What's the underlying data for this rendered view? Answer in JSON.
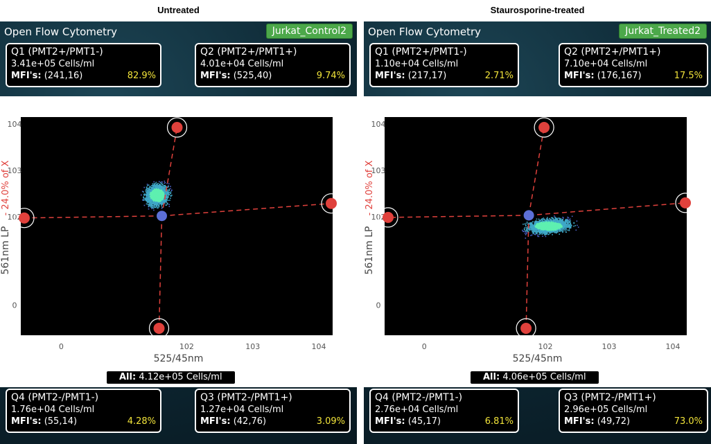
{
  "panels": [
    {
      "caption": "Untreated",
      "app_title": "Open Flow Cytometry",
      "sample_name": "Jurkat_Control2",
      "quadrants": {
        "q1": {
          "title": "Q1 (PMT2+/PMT1-)",
          "count": "3.41e+05 Cells/ml",
          "mfi_label": "MFI's:",
          "mfi": "(241,16)",
          "pct": "82.9%"
        },
        "q2": {
          "title": "Q2 (PMT2+/PMT1+)",
          "count": "4.01e+04 Cells/ml",
          "mfi_label": "MFI's:",
          "mfi": "(525,40)",
          "pct": "9.74%"
        },
        "q3": {
          "title": "Q3 (PMT2-/PMT1+)",
          "count": "1.27e+04 Cells/ml",
          "mfi_label": "MFI's:",
          "mfi": "(42,76)",
          "pct": "3.09%"
        },
        "q4": {
          "title": "Q4 (PMT2-/PMT1-)",
          "count": "1.76e+04 Cells/ml",
          "mfi_label": "MFI's:",
          "mfi": "(55,14)",
          "pct": "4.28%"
        }
      },
      "total_label": "All:",
      "total_value": "4.12e+05 Cells/ml",
      "gate": {
        "x": 42,
        "y": 105
      }
    },
    {
      "caption": "Staurosporine-treated",
      "app_title": "Open Flow Cytometry",
      "sample_name": "Jurkat_Treated2",
      "quadrants": {
        "q1": {
          "title": "Q1 (PMT2+/PMT1-)",
          "count": "1.10e+04 Cells/ml",
          "mfi_label": "MFI's:",
          "mfi": "(217,17)",
          "pct": "2.71%"
        },
        "q2": {
          "title": "Q2 (PMT2+/PMT1+)",
          "count": "7.10e+04 Cells/ml",
          "mfi_label": "MFI's:",
          "mfi": "(176,167)",
          "pct": "17.5%"
        },
        "q3": {
          "title": "Q3 (PMT2-/PMT1+)",
          "count": "2.96e+05 Cells/ml",
          "mfi_label": "MFI's:",
          "mfi": "(49,72)",
          "pct": "73.0%"
        },
        "q4": {
          "title": "Q4 (PMT2-/PMT1-)",
          "count": "2.76e+04 Cells/ml",
          "mfi_label": "MFI's:",
          "mfi": "(45,17)",
          "pct": "6.81%"
        }
      },
      "total_label": "All:",
      "total_value": "4.06e+05 Cells/ml",
      "gate": {
        "x": 55,
        "y": 108
      }
    }
  ],
  "chart_data": [
    {
      "type": "scatter",
      "title": "Untreated",
      "xlabel": "525/45nm",
      "ylabel": "561nm LP",
      "ylabel_note": "- 24.0% of X",
      "x_ticks": [
        "0",
        "10^2",
        "10^3",
        "10^4"
      ],
      "y_ticks": [
        "0",
        "10^2",
        "10^3",
        "10^4"
      ],
      "scale": "logicle",
      "population_center": {
        "x": 35,
        "y": 300
      },
      "quadrant_gate": {
        "x": 42,
        "y": 105
      },
      "grid": false
    },
    {
      "type": "scatter",
      "title": "Staurosporine-treated",
      "xlabel": "525/45nm",
      "ylabel": "561nm LP",
      "ylabel_note": "- 24.0% of X",
      "x_ticks": [
        "0",
        "10^2",
        "10^3",
        "10^4"
      ],
      "y_ticks": [
        "0",
        "10^2",
        "10^3",
        "10^4"
      ],
      "scale": "logicle",
      "population_center": {
        "x": 110,
        "y": 65
      },
      "quadrant_gate": {
        "x": 55,
        "y": 108
      },
      "grid": false
    }
  ],
  "colors": {
    "badge": "#4ca84a",
    "gate_line": "#e0413c",
    "gate_center": "#5c6fd6",
    "percent": "#f2e43a",
    "ylabel_note": "#e0413c"
  }
}
